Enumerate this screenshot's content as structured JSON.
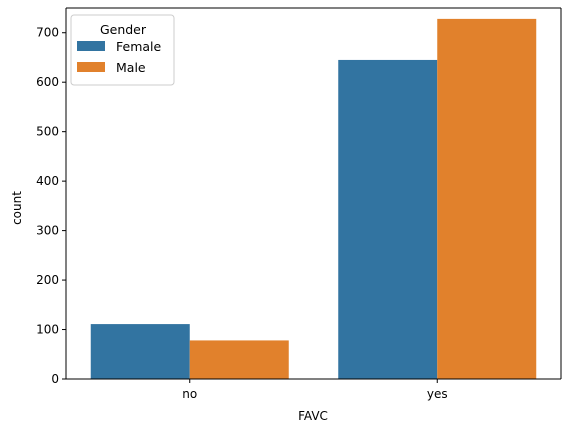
{
  "chart_data": {
    "type": "bar",
    "title": "",
    "xlabel": "FAVC",
    "ylabel": "count",
    "categories": [
      "no",
      "yes"
    ],
    "series": [
      {
        "name": "Female",
        "values": [
          111,
          645
        ],
        "color": "#3274a1"
      },
      {
        "name": "Male",
        "values": [
          78,
          728
        ],
        "color": "#e1812c"
      }
    ],
    "ylim": [
      0,
      750
    ],
    "yticks": [
      0,
      100,
      200,
      300,
      400,
      500,
      600,
      700
    ],
    "legend": {
      "title": "Gender",
      "placement": "top-left"
    },
    "grid": false
  }
}
